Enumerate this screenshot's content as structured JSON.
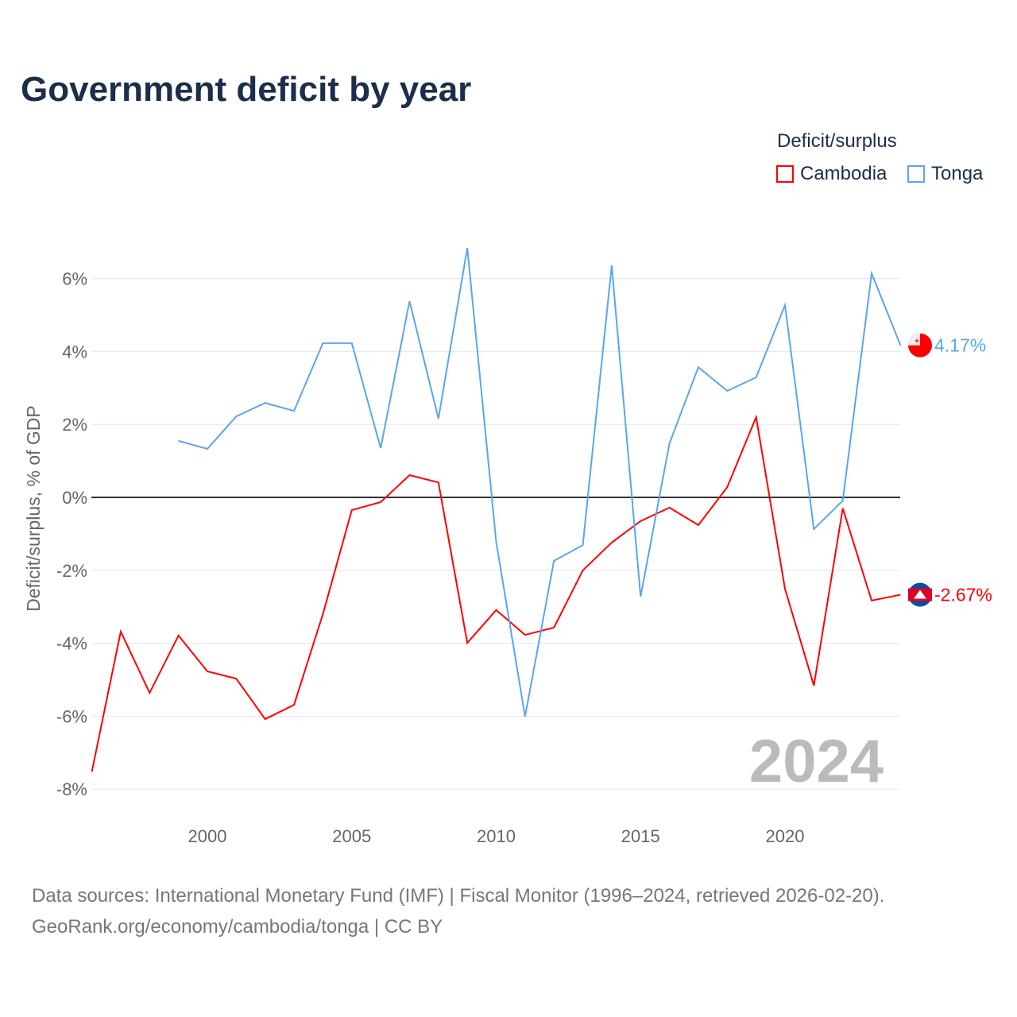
{
  "title": "Government deficit by year",
  "legend": {
    "title": "Deficit/surplus",
    "items": [
      {
        "name": "Cambodia",
        "color": "#ff0000"
      },
      {
        "name": "Tonga",
        "color": "#5aa5ef"
      }
    ]
  },
  "source": {
    "line1": "Data sources: International Monetary Fund (IMF) | Fiscal Monitor (1996–2024, retrieved 2026-02-20).",
    "line2": "GeoRank.org/economy/cambodia/tonga | CC BY"
  },
  "chart_data": {
    "type": "line",
    "title": "Government deficit by year",
    "ylabel": "Deficit/surplus, % of GDP",
    "xlim": [
      1996,
      2024
    ],
    "ylim": [
      -8.5,
      7.5
    ],
    "yticks": [
      6,
      4,
      2,
      0,
      -2,
      -4,
      -6,
      -8
    ],
    "ytick_labels": [
      "6%",
      "4%",
      "2%",
      "0%",
      "-2%",
      "-4%",
      "-6%",
      "-8%"
    ],
    "xticks": [
      2000,
      2005,
      2010,
      2015,
      2020
    ],
    "xtick_labels": [
      "2000",
      "2005",
      "2010",
      "2015",
      "2020"
    ],
    "year_label": "2024",
    "series": [
      {
        "name": "Cambodia",
        "color": "#ff0000",
        "end_label": "-2.67%",
        "x": [
          1996,
          1997,
          1998,
          1999,
          2000,
          2001,
          2002,
          2003,
          2004,
          2005,
          2006,
          2007,
          2008,
          2009,
          2010,
          2011,
          2012,
          2013,
          2014,
          2015,
          2016,
          2017,
          2018,
          2019,
          2020,
          2021,
          2022,
          2023,
          2024
        ],
        "values": [
          -7.52,
          -3.68,
          -5.36,
          -3.79,
          -4.77,
          -4.97,
          -6.08,
          -5.69,
          -3.2,
          -0.35,
          -0.13,
          0.61,
          0.41,
          -3.99,
          -3.09,
          -3.77,
          -3.57,
          -2.0,
          -1.24,
          -0.65,
          -0.28,
          -0.76,
          0.28,
          2.2,
          -2.51,
          -5.16,
          -0.3,
          -2.83,
          -2.67
        ]
      },
      {
        "name": "Tonga",
        "color": "#5aa5ef",
        "end_label": "4.17%",
        "x": [
          1999,
          2000,
          2001,
          2002,
          2003,
          2004,
          2005,
          2006,
          2007,
          2008,
          2009,
          2010,
          2011,
          2012,
          2013,
          2014,
          2015,
          2016,
          2017,
          2018,
          2019,
          2020,
          2021,
          2022,
          2023,
          2024
        ],
        "values": [
          1.55,
          1.33,
          2.22,
          2.59,
          2.37,
          4.23,
          4.23,
          1.35,
          5.38,
          2.16,
          6.84,
          -1.22,
          -6.01,
          -1.74,
          -1.31,
          6.36,
          -2.72,
          1.48,
          3.57,
          2.92,
          3.29,
          5.27,
          -0.87,
          -0.09,
          6.14,
          4.17
        ]
      }
    ]
  }
}
